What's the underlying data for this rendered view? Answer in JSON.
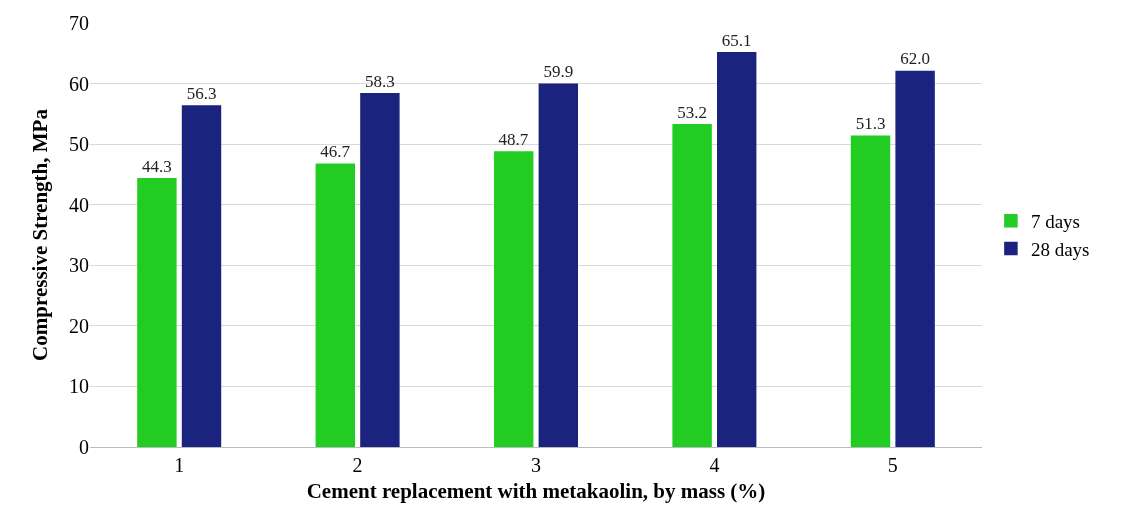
{
  "chart_data": {
    "type": "bar",
    "xlabel": "Cement replacement with metakaolin, by mass (%)",
    "ylabel": "Compressive Strength, MPa",
    "categories": [
      "1",
      "2",
      "3",
      "4",
      "5"
    ],
    "series": [
      {
        "name": "7 days",
        "color": "#22cc22",
        "values": [
          44.3,
          46.7,
          48.7,
          53.2,
          51.3
        ],
        "value_labels": [
          "44.3",
          "46.7",
          "48.7",
          "53.2",
          "51.3"
        ]
      },
      {
        "name": "28 days",
        "color": "#1a237e",
        "values": [
          56.3,
          58.3,
          59.9,
          65.1,
          62.0
        ],
        "value_labels": [
          "56.3",
          "58.3",
          "59.9",
          "65.1",
          "62.0"
        ]
      }
    ],
    "ylim": [
      0,
      70
    ],
    "yticks": [
      0,
      10,
      20,
      30,
      40,
      50,
      60,
      70
    ],
    "grid": "y",
    "legend": "right"
  }
}
